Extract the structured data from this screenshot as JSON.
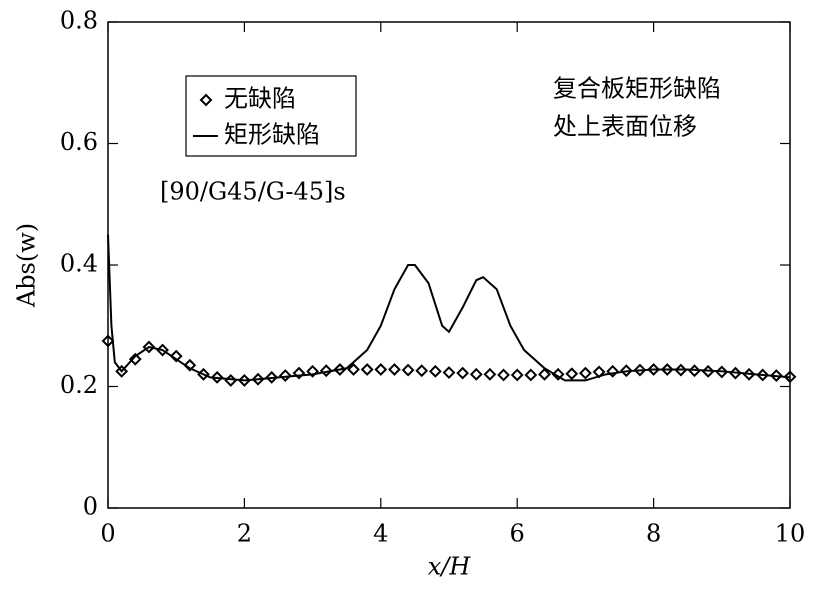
{
  "chart_data": {
    "type": "line",
    "xlabel": "x/H",
    "ylabel": "Abs(w)",
    "annotations": [
      "复合板矩形缺陷",
      "处上表面位移",
      "[90/G45/G-45]s"
    ],
    "xlim": [
      0,
      10
    ],
    "xticks": [
      0,
      2,
      4,
      6,
      8,
      10
    ],
    "ylim": [
      0,
      0.8
    ],
    "yticks": [
      0,
      0.2,
      0.4,
      0.6,
      0.8
    ],
    "legend": "upper left",
    "series": [
      {
        "name": "无缺陷",
        "color": "#000000",
        "marker": "diamond",
        "x": [
          0,
          0.2,
          0.4,
          0.6,
          0.8,
          1.0,
          1.2,
          1.4,
          1.6,
          1.8,
          2.0,
          2.2,
          2.4,
          2.6,
          2.8,
          3.0,
          3.2,
          3.4,
          3.6,
          3.8,
          4.0,
          4.2,
          4.4,
          4.6,
          4.8,
          5.0,
          5.2,
          5.4,
          5.6,
          5.8,
          6.0,
          6.2,
          6.4,
          6.6,
          6.8,
          7.0,
          7.2,
          7.4,
          7.6,
          7.8,
          8.0,
          8.2,
          8.4,
          8.6,
          8.8,
          9.0,
          9.2,
          9.4,
          9.6,
          9.8,
          10.0
        ],
        "values": [
          0.275,
          0.225,
          0.245,
          0.265,
          0.26,
          0.25,
          0.235,
          0.22,
          0.215,
          0.21,
          0.21,
          0.212,
          0.215,
          0.218,
          0.222,
          0.225,
          0.226,
          0.228,
          0.228,
          0.228,
          0.228,
          0.228,
          0.227,
          0.226,
          0.225,
          0.223,
          0.222,
          0.22,
          0.22,
          0.219,
          0.219,
          0.219,
          0.22,
          0.22,
          0.221,
          0.222,
          0.224,
          0.225,
          0.226,
          0.227,
          0.228,
          0.228,
          0.227,
          0.226,
          0.225,
          0.224,
          0.222,
          0.22,
          0.219,
          0.218,
          0.216
        ]
      },
      {
        "name": "矩形缺陷",
        "color": "#000000",
        "marker": "none",
        "x": [
          0,
          0.05,
          0.1,
          0.2,
          0.4,
          0.6,
          0.8,
          1.0,
          1.2,
          1.5,
          2.0,
          2.5,
          3.0,
          3.5,
          3.8,
          4.0,
          4.2,
          4.4,
          4.5,
          4.7,
          4.9,
          5.0,
          5.2,
          5.4,
          5.5,
          5.7,
          5.9,
          6.1,
          6.4,
          6.7,
          7.0,
          7.3,
          7.6,
          8.0,
          8.5,
          9.0,
          9.5,
          10
        ],
        "values": [
          0.45,
          0.3,
          0.24,
          0.225,
          0.25,
          0.265,
          0.26,
          0.245,
          0.23,
          0.215,
          0.21,
          0.215,
          0.22,
          0.23,
          0.26,
          0.3,
          0.36,
          0.4,
          0.4,
          0.37,
          0.3,
          0.29,
          0.33,
          0.375,
          0.38,
          0.36,
          0.3,
          0.26,
          0.23,
          0.21,
          0.21,
          0.22,
          0.225,
          0.228,
          0.228,
          0.225,
          0.22,
          0.215
        ]
      }
    ]
  }
}
